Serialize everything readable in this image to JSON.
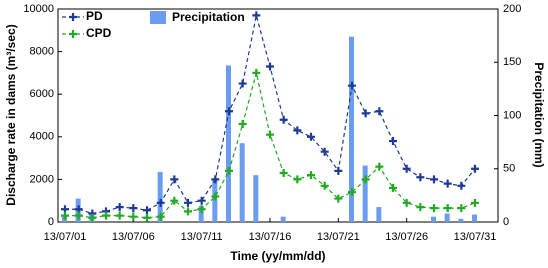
{
  "chart_data": {
    "type": "line-bar",
    "categories": [
      "13/07/01",
      null,
      null,
      null,
      null,
      "13/07/06",
      null,
      null,
      null,
      null,
      "13/07/11",
      null,
      null,
      null,
      null,
      "13/07/16",
      null,
      null,
      null,
      null,
      "13/07/21",
      null,
      null,
      null,
      null,
      "13/07/26",
      null,
      null,
      null,
      null,
      "13/07/31"
    ],
    "x_label": "Time (yy/mm/dd)",
    "y_label": "Discharge rate in dams (m³/sec)",
    "y2_label": "Precipitation (mm)",
    "ylim": [
      0,
      10000
    ],
    "yticks": [
      0,
      2000,
      4000,
      6000,
      8000,
      10000
    ],
    "y2lim": [
      0,
      200
    ],
    "y2ticks": [
      0,
      50,
      100,
      150,
      200
    ],
    "series": [
      {
        "name": "PD",
        "color": "#1c3a96",
        "values": [
          600,
          600,
          400,
          500,
          700,
          650,
          550,
          900,
          2000,
          900,
          1000,
          2000,
          5200,
          6500,
          9700,
          7300,
          4800,
          4300,
          4000,
          3300,
          2400,
          6400,
          5100,
          5200,
          3800,
          2500,
          2100,
          2000,
          1800,
          1700,
          2500
        ]
      },
      {
        "name": "CPD",
        "color": "#22aa22",
        "values": [
          300,
          300,
          200,
          300,
          300,
          250,
          200,
          250,
          1000,
          500,
          600,
          1200,
          2400,
          4600,
          7000,
          4100,
          2300,
          2000,
          2200,
          1700,
          1100,
          1400,
          2000,
          2600,
          1600,
          900,
          700,
          650,
          650,
          650,
          900
        ]
      },
      {
        "name": "Precipitation",
        "color": "#6b9cf0",
        "axis": "y2",
        "values": [
          5,
          22,
          8,
          0,
          0,
          0,
          0,
          47,
          0,
          0,
          15,
          41,
          147,
          74,
          44,
          0,
          5,
          0,
          0,
          0,
          0,
          174,
          53,
          14,
          0,
          0,
          0,
          5,
          8,
          3,
          7
        ]
      }
    ]
  }
}
